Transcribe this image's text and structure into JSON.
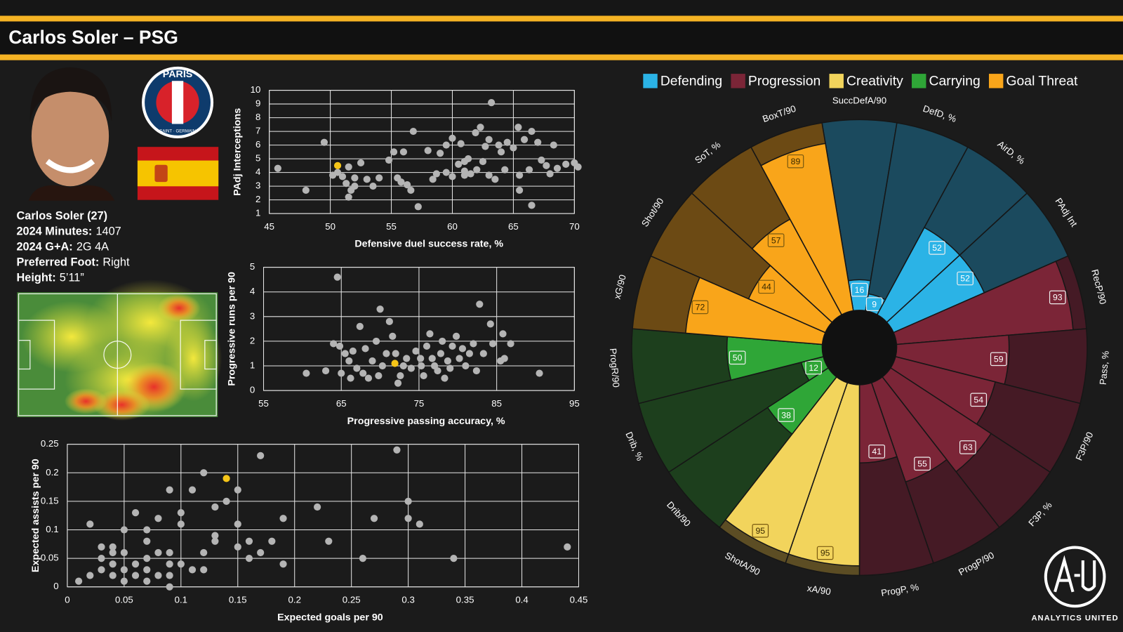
{
  "header": {
    "title": "Carlos Soler – PSG"
  },
  "profile": {
    "name": "Carlos Soler (27)",
    "lines": [
      {
        "label": "2024 Minutes:",
        "value": "1407"
      },
      {
        "label": "2024 G+A:",
        "value": "2G 4A"
      },
      {
        "label": "Preferred Foot:",
        "value": "Right"
      },
      {
        "label": "Height:",
        "value": "5’11”"
      }
    ]
  },
  "club_logo": {
    "top": "PARIS",
    "bottom": "SAINT · GERMAIN"
  },
  "brand": {
    "name": "ANALYTICS UNITED"
  },
  "chart_data": [
    {
      "type": "scatter",
      "x_label": "Defensive duel success rate, %",
      "y_label": "PAdj Interceptions",
      "xlim": [
        45,
        70
      ],
      "xticks": [
        45,
        50,
        55,
        60,
        65,
        70
      ],
      "ylim": [
        1,
        10
      ],
      "yticks": [
        1,
        2,
        3,
        4,
        5,
        6,
        7,
        8,
        9,
        10
      ],
      "grid": true,
      "series": [
        {
          "color": "#b4b4b4",
          "x": [
            45.7,
            48,
            49.5,
            50.2,
            50.6,
            51,
            51.5,
            51.3,
            51.7,
            51.5,
            52,
            52.5,
            52,
            53,
            53.5,
            54,
            54.8,
            55.5,
            55.2,
            55.8,
            56,
            56.3,
            56.6,
            57.2,
            56.8,
            58,
            58.4,
            58.7,
            59,
            59.5,
            59.5,
            60,
            60,
            60.5,
            60.7,
            61,
            61,
            61.3,
            61.5,
            61.9,
            62,
            62.3,
            62.5,
            62.7,
            63,
            63,
            63.2,
            63.5,
            63.8,
            64,
            64.3,
            64.5,
            65,
            65.5,
            65.4,
            65.9,
            66.3,
            66.5,
            66.5,
            67,
            67.3,
            67.7,
            68,
            68.3,
            68.6,
            69.3,
            70,
            70.3,
            65.5,
            61
          ],
          "values": [
            4.3,
            2.7,
            6.2,
            3.8,
            4,
            3.7,
            2.2,
            3.2,
            2.7,
            4.4,
            3.6,
            4.7,
            3,
            3.5,
            3,
            3.6,
            4.9,
            3.6,
            5.5,
            3.3,
            5.5,
            3.1,
            2.7,
            1.5,
            7,
            5.6,
            3.5,
            3.9,
            5.4,
            4,
            6,
            3.7,
            6.5,
            4.6,
            6.1,
            3.8,
            4.8,
            5,
            3.9,
            6.9,
            4.2,
            7.3,
            4.8,
            5.9,
            3.8,
            6.4,
            9.1,
            3.5,
            6,
            5.5,
            4.2,
            6.2,
            5.8,
            2.7,
            7.3,
            6.4,
            4.2,
            7,
            1.6,
            6.2,
            4.9,
            4.5,
            3.9,
            6,
            4.3,
            4.6,
            4.7,
            4.4,
            3.8,
            4.1
          ]
        },
        {
          "color": "#f5c518",
          "x": [
            50.6
          ],
          "values": [
            4.5
          ]
        }
      ]
    },
    {
      "type": "scatter",
      "x_label": "Progressive passing accuracy, %",
      "y_label": "Progressive runs per 90",
      "xlim": [
        55,
        95
      ],
      "xticks": [
        55,
        65,
        75,
        85,
        95
      ],
      "ylim": [
        0,
        5
      ],
      "yticks": [
        0,
        1,
        2,
        3,
        4,
        5
      ],
      "grid": true,
      "series": [
        {
          "color": "#b4b4b4",
          "x": [
            60.5,
            63,
            64,
            64.5,
            64.8,
            65,
            65.5,
            66,
            66.2,
            66.5,
            67,
            67.4,
            67.8,
            68.1,
            68.5,
            69,
            69.5,
            69.8,
            70,
            70.3,
            70.8,
            71.2,
            71.6,
            72,
            72.3,
            72.6,
            73,
            73.4,
            74,
            74.6,
            75.3,
            75.6,
            76,
            76.4,
            76.7,
            77,
            77.4,
            77.8,
            78,
            78.3,
            78.7,
            79,
            79.3,
            79.8,
            80.2,
            80.6,
            81,
            81.5,
            82,
            82.4,
            82.8,
            83.3,
            84.2,
            84.5,
            85.5,
            85.8,
            86,
            86.8,
            90.5,
            75.2
          ],
          "values": [
            0.7,
            0.8,
            1.9,
            4.6,
            1.8,
            0.7,
            1.5,
            1.2,
            0.5,
            1.6,
            0.9,
            2.6,
            0.7,
            1.7,
            0.5,
            1.2,
            2,
            0.6,
            3.3,
            1,
            1.5,
            2.8,
            2.2,
            1.5,
            0.3,
            0.6,
            1,
            1.3,
            0.9,
            1.6,
            1,
            0.6,
            1.8,
            2.3,
            1.3,
            1,
            0.8,
            1.5,
            2,
            0.5,
            1.2,
            0.9,
            1.8,
            2.2,
            1.3,
            1.7,
            1,
            1.5,
            1.9,
            0.8,
            3.5,
            1.5,
            2.7,
            1.9,
            1.2,
            2.3,
            1.3,
            1.9,
            0.7,
            1.3
          ]
        },
        {
          "color": "#f5c518",
          "x": [
            71.9
          ],
          "values": [
            1.1
          ]
        }
      ]
    },
    {
      "type": "scatter",
      "x_label": "Expected goals per 90",
      "y_label": "Expected assists per 90",
      "xlim": [
        0,
        0.45
      ],
      "xticks": [
        0,
        0.05,
        0.1,
        0.15,
        0.2,
        0.25,
        0.3,
        0.35,
        0.4,
        0.45
      ],
      "ylim": [
        0,
        0.25
      ],
      "yticks": [
        0,
        0.05,
        0.1,
        0.15,
        0.2,
        0.25
      ],
      "grid": true,
      "series": [
        {
          "color": "#b4b4b4",
          "x": [
            0.01,
            0.02,
            0.02,
            0.03,
            0.03,
            0.03,
            0.04,
            0.04,
            0.04,
            0.04,
            0.05,
            0.05,
            0.05,
            0.05,
            0.06,
            0.06,
            0.06,
            0.07,
            0.07,
            0.07,
            0.07,
            0.07,
            0.08,
            0.08,
            0.08,
            0.09,
            0.09,
            0.09,
            0.09,
            0.09,
            0.1,
            0.1,
            0.1,
            0.11,
            0.11,
            0.12,
            0.12,
            0.12,
            0.13,
            0.13,
            0.14,
            0.15,
            0.15,
            0.15,
            0.16,
            0.17,
            0.17,
            0.18,
            0.19,
            0.19,
            0.22,
            0.23,
            0.26,
            0.27,
            0.29,
            0.3,
            0.3,
            0.31,
            0.34,
            0.44,
            0.13,
            0.16
          ],
          "values": [
            0.01,
            0.02,
            0.11,
            0.03,
            0.05,
            0.07,
            0.02,
            0.04,
            0.06,
            0.07,
            0.01,
            0.03,
            0.06,
            0.1,
            0.02,
            0.04,
            0.13,
            0.01,
            0.03,
            0.05,
            0.08,
            0.1,
            0.02,
            0.06,
            0.12,
            0,
            0.02,
            0.04,
            0.06,
            0.17,
            0.04,
            0.11,
            0.13,
            0.03,
            0.17,
            0.03,
            0.06,
            0.2,
            0.08,
            0.14,
            0.15,
            0.07,
            0.11,
            0.17,
            0.05,
            0.06,
            0.23,
            0.08,
            0.04,
            0.12,
            0.14,
            0.08,
            0.05,
            0.12,
            0.24,
            0.12,
            0.15,
            0.11,
            0.05,
            0.07,
            0.09,
            0.08
          ]
        },
        {
          "color": "#f5c518",
          "x": [
            0.14
          ],
          "values": [
            0.19
          ]
        }
      ]
    },
    {
      "type": "polar",
      "rlim": [
        0,
        100
      ],
      "series": [
        {
          "name": "Defending",
          "color": "#2bb3e6",
          "bg_color": "#1b4a5e",
          "categories": [
            "SuccDefA/90",
            "DefD, %",
            "AirD, %",
            "PAdj Int"
          ],
          "values": [
            16,
            9,
            52,
            52
          ]
        },
        {
          "name": "Progression",
          "color": "#7b2537",
          "bg_color": "#451a25",
          "categories": [
            "RecP/90",
            "Pass, %",
            "F3P/90",
            "F3P, %",
            "ProgP/90",
            "ProgP, %"
          ],
          "values": [
            93,
            59,
            54,
            63,
            55,
            41
          ]
        },
        {
          "name": "Creativity",
          "color": "#f2d45c",
          "bg_color": "#5c4d24",
          "categories": [
            "xA/90",
            "ShotA/90"
          ],
          "values": [
            95,
            95
          ]
        },
        {
          "name": "Carrying",
          "color": "#2fa637",
          "bg_color": "#1d3f1d",
          "categories": [
            "Drib/90",
            "Drib, %",
            "ProgR/90"
          ],
          "values": [
            38,
            12,
            50
          ]
        },
        {
          "name": "Goal Threat",
          "color": "#f9a51a",
          "bg_color": "#6c4a14",
          "categories": [
            "xG/90",
            "Shot/90",
            "SoT, %",
            "BoxT/90"
          ],
          "values": [
            72,
            44,
            57,
            89
          ]
        }
      ]
    }
  ]
}
